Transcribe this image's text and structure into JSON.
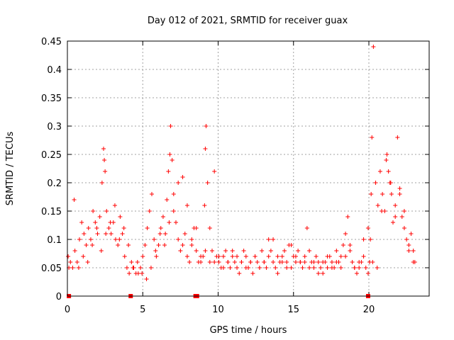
{
  "chart_data": {
    "type": "scatter",
    "title": "Day 012 of 2021, SRMTID for receiver guax",
    "xlabel": "GPS time / hours",
    "ylabel": "SRMTID / TECUs",
    "xlim": [
      0,
      24
    ],
    "ylim": [
      0,
      0.45
    ],
    "x_ticks": [
      0,
      5,
      10,
      15,
      20
    ],
    "x_tick_labels": [
      "0",
      "5",
      "10",
      "15",
      "20"
    ],
    "y_ticks": [
      0,
      0.05,
      0.1,
      0.15,
      0.2,
      0.25,
      0.3,
      0.35,
      0.4,
      0.45
    ],
    "y_tick_labels": [
      "0",
      "0.05",
      "0.1",
      "0.15",
      "0.2",
      "0.25",
      "0.3",
      "0.35",
      "0.4",
      "0.45"
    ],
    "grid": true,
    "marker": "plus",
    "color": "#ff0000",
    "series": [
      {
        "name": "SRMTID",
        "x": [
          0.05,
          0.2,
          0.35,
          0.5,
          0.65,
          0.8,
          0.95,
          1.1,
          1.25,
          1.4,
          1.55,
          1.7,
          1.85,
          2.0,
          2.15,
          2.3,
          2.4,
          2.45,
          2.5,
          2.6,
          2.75,
          2.9,
          3.05,
          3.2,
          3.35,
          3.5,
          3.65,
          3.8,
          3.95,
          4.1,
          4.25,
          4.4,
          4.55,
          4.7,
          4.85,
          5.0,
          5.15,
          5.3,
          5.45,
          5.6,
          5.75,
          5.9,
          6.05,
          6.2,
          6.35,
          6.5,
          6.6,
          6.7,
          6.8,
          6.85,
          6.95,
          7.05,
          7.2,
          7.35,
          7.5,
          7.65,
          7.8,
          7.95,
          8.1,
          8.25,
          8.4,
          8.55,
          8.7,
          8.85,
          9.0,
          9.1,
          9.15,
          9.2,
          9.3,
          9.45,
          9.6,
          9.75,
          9.9,
          10.05,
          10.2,
          10.35,
          10.5,
          10.65,
          10.8,
          10.95,
          11.1,
          11.25,
          11.4,
          11.55,
          11.7,
          11.85,
          12.0,
          12.15,
          12.3,
          12.45,
          12.6,
          12.75,
          12.9,
          13.05,
          13.2,
          13.35,
          13.5,
          13.65,
          13.8,
          13.95,
          14.1,
          14.25,
          14.4,
          14.55,
          14.7,
          14.85,
          15.0,
          15.15,
          15.3,
          15.45,
          15.6,
          15.75,
          15.9,
          16.05,
          16.2,
          16.35,
          16.5,
          16.65,
          16.8,
          16.95,
          17.1,
          17.25,
          17.4,
          17.55,
          17.7,
          17.85,
          18.0,
          18.15,
          18.3,
          18.45,
          18.6,
          18.75,
          18.9,
          19.05,
          19.2,
          19.35,
          19.5,
          19.65,
          19.8,
          19.95,
          20.05,
          20.1,
          20.15,
          20.2,
          20.3,
          20.45,
          20.6,
          20.75,
          20.9,
          21.05,
          21.2,
          21.3,
          21.4,
          21.5,
          21.6,
          21.75,
          21.9,
          22.05,
          22.2,
          22.35,
          22.5,
          22.65,
          22.8,
          22.95,
          23.05,
          0.1,
          0.45,
          0.75,
          1.05,
          1.35,
          1.65,
          1.95,
          2.25,
          2.55,
          2.85,
          3.15,
          3.45,
          3.75,
          4.05,
          4.35,
          4.65,
          4.95,
          5.25,
          5.55,
          5.85,
          6.15,
          6.45,
          6.75,
          7.05,
          7.35,
          7.65,
          7.95,
          8.25,
          8.55,
          8.85,
          9.15,
          9.45,
          9.75,
          10.05,
          10.35,
          10.65,
          10.95,
          11.25,
          11.55,
          11.85,
          12.15,
          12.45,
          12.75,
          13.05,
          13.35,
          13.65,
          13.95,
          14.25,
          14.55,
          14.85,
          15.15,
          15.45,
          15.75,
          16.05,
          16.35,
          16.65,
          16.95,
          17.25,
          17.55,
          17.85,
          18.15,
          18.45,
          18.75,
          19.05,
          19.35,
          19.65,
          19.95,
          20.25,
          20.55,
          20.85,
          21.15,
          21.45,
          21.75,
          22.05,
          22.35,
          22.65,
          22.95
        ],
        "y": [
          0.07,
          0.06,
          0.05,
          0.08,
          0.06,
          0.1,
          0.13,
          0.11,
          0.09,
          0.12,
          0.1,
          0.15,
          0.13,
          0.11,
          0.14,
          0.2,
          0.26,
          0.24,
          0.22,
          0.15,
          0.12,
          0.11,
          0.13,
          0.1,
          0.09,
          0.14,
          0.11,
          0.07,
          0.05,
          0.04,
          0.06,
          0.05,
          0.04,
          0.04,
          0.05,
          0.07,
          0.09,
          0.12,
          0.15,
          0.18,
          0.1,
          0.07,
          0.09,
          0.12,
          0.14,
          0.11,
          0.17,
          0.22,
          0.25,
          0.3,
          0.24,
          0.18,
          0.13,
          0.1,
          0.08,
          0.09,
          0.11,
          0.07,
          0.06,
          0.1,
          0.12,
          0.08,
          0.06,
          0.06,
          0.07,
          0.16,
          0.26,
          0.3,
          0.2,
          0.12,
          0.08,
          0.06,
          0.07,
          0.06,
          0.05,
          0.07,
          0.08,
          0.06,
          0.05,
          0.07,
          0.06,
          0.05,
          0.04,
          0.06,
          0.08,
          0.07,
          0.05,
          0.06,
          0.04,
          0.07,
          0.06,
          0.05,
          0.08,
          0.06,
          0.05,
          0.1,
          0.08,
          0.06,
          0.05,
          0.04,
          0.06,
          0.07,
          0.08,
          0.06,
          0.09,
          0.05,
          0.07,
          0.06,
          0.08,
          0.06,
          0.05,
          0.07,
          0.12,
          0.08,
          0.06,
          0.05,
          0.07,
          0.06,
          0.05,
          0.04,
          0.06,
          0.05,
          0.07,
          0.06,
          0.05,
          0.08,
          0.06,
          0.07,
          0.09,
          0.11,
          0.14,
          0.08,
          0.06,
          0.05,
          0.04,
          0.05,
          0.06,
          0.07,
          0.05,
          0.04,
          0.06,
          0.1,
          0.18,
          0.28,
          0.44,
          0.2,
          0.16,
          0.22,
          0.18,
          0.15,
          0.25,
          0.22,
          0.2,
          0.18,
          0.13,
          0.16,
          0.28,
          0.18,
          0.14,
          0.15,
          0.1,
          0.09,
          0.11,
          0.08,
          0.06,
          0.05,
          0.17,
          0.05,
          0.07,
          0.06,
          0.09,
          0.12,
          0.08,
          0.11,
          0.13,
          0.16,
          0.1,
          0.12,
          0.09,
          0.05,
          0.06,
          0.04,
          0.03,
          0.05,
          0.08,
          0.11,
          0.09,
          0.13,
          0.15,
          0.2,
          0.21,
          0.16,
          0.09,
          0.12,
          0.07,
          0.08,
          0.06,
          0.22,
          0.07,
          0.05,
          0.06,
          0.08,
          0.07,
          0.06,
          0.05,
          0.06,
          0.07,
          0.05,
          0.06,
          0.07,
          0.1,
          0.07,
          0.06,
          0.05,
          0.09,
          0.07,
          0.06,
          0.06,
          0.05,
          0.06,
          0.04,
          0.06,
          0.07,
          0.05,
          0.06,
          0.05,
          0.07,
          0.09,
          0.05,
          0.06,
          0.1,
          0.12,
          0.06,
          0.05,
          0.15,
          0.24,
          0.2,
          0.14,
          0.19,
          0.12,
          0.08,
          0.06
        ],
        "low_markers_x": [
          0.1,
          4.2,
          8.5,
          8.6,
          19.95
        ]
      }
    ]
  }
}
